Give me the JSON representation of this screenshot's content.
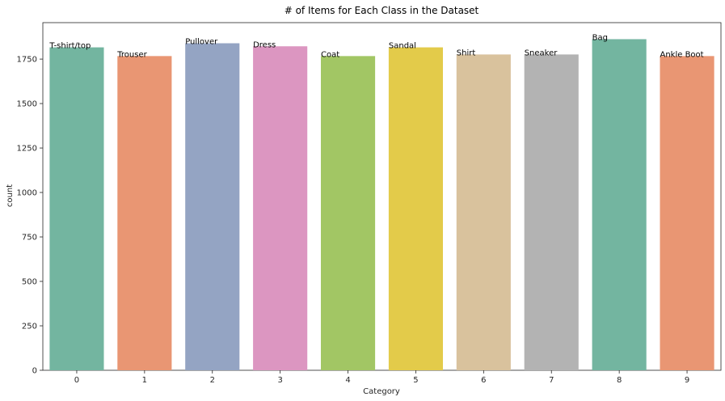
{
  "chart_data": {
    "type": "bar",
    "title": "# of Items for Each Class in the Dataset",
    "xlabel": "Category",
    "ylabel": "count",
    "categories": [
      "0",
      "1",
      "2",
      "3",
      "4",
      "5",
      "6",
      "7",
      "8",
      "9"
    ],
    "values": [
      1816,
      1767,
      1839,
      1822,
      1767,
      1816,
      1776,
      1776,
      1862,
      1767
    ],
    "bar_labels": [
      "T-shirt/top",
      "Trouser",
      "Pullover",
      "Dress",
      "Coat",
      "Sandal",
      "Shirt",
      "Sneaker",
      "Bag",
      "Ankle Boot"
    ],
    "colors": [
      "#73b5a0",
      "#e99673",
      "#94a4c3",
      "#dc96c1",
      "#a2c664",
      "#e3cb4a",
      "#d9c29d",
      "#b3b3b3",
      "#73b5a0",
      "#e99673"
    ],
    "ylim": [
      0,
      1955
    ],
    "yticks": [
      0,
      250,
      500,
      750,
      1000,
      1250,
      1500,
      1750
    ],
    "grid": false,
    "legend": "none"
  }
}
